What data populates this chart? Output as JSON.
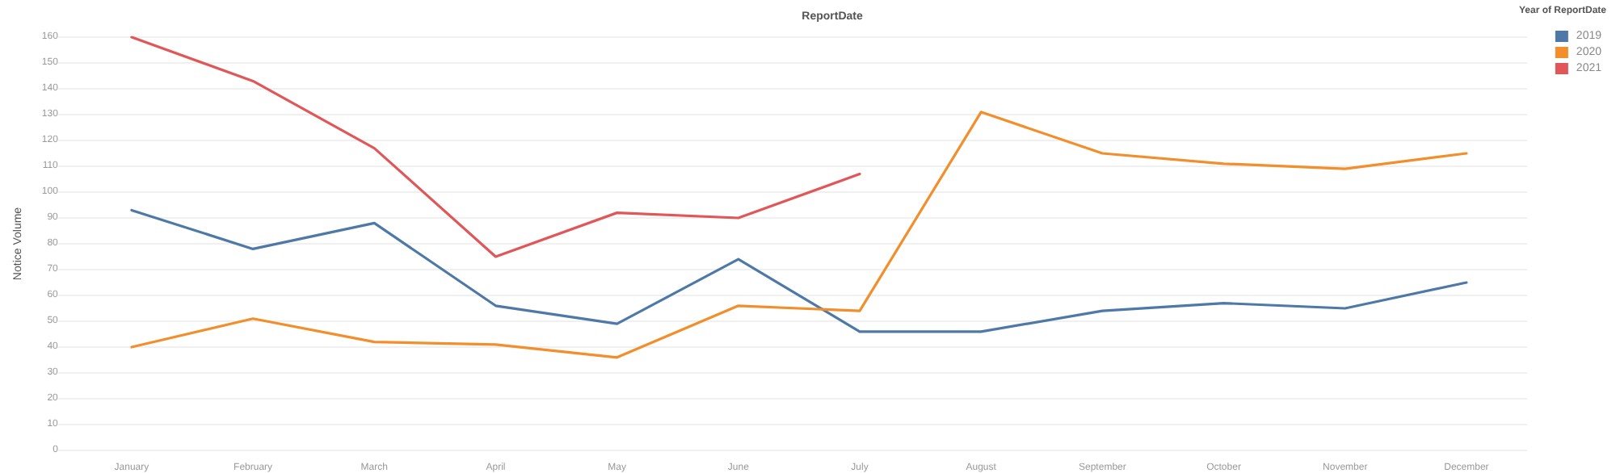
{
  "chart_data": {
    "type": "line",
    "title": "ReportDate",
    "ylabel": "Notice Volume",
    "legend_title": "Year of ReportDate",
    "categories": [
      "January",
      "February",
      "March",
      "April",
      "May",
      "June",
      "July",
      "August",
      "September",
      "October",
      "November",
      "December"
    ],
    "series": [
      {
        "name": "2019",
        "color": "#4e79a7",
        "values": [
          93,
          78,
          88,
          56,
          49,
          74,
          46,
          46,
          54,
          57,
          55,
          65
        ]
      },
      {
        "name": "2020",
        "color": "#f28e2b",
        "values": [
          40,
          51,
          42,
          41,
          36,
          56,
          54,
          131,
          115,
          111,
          109,
          115
        ]
      },
      {
        "name": "2021",
        "color": "#e15759",
        "values": [
          160,
          143,
          117,
          75,
          92,
          90,
          107,
          null,
          null,
          null,
          null,
          null
        ]
      }
    ],
    "ylim": [
      0,
      160
    ],
    "yticks": [
      0,
      10,
      20,
      30,
      40,
      50,
      60,
      70,
      80,
      90,
      100,
      110,
      120,
      130,
      140,
      150,
      160
    ],
    "grid": "y",
    "legend": "top right",
    "marker": "none",
    "line_style": "solid"
  }
}
